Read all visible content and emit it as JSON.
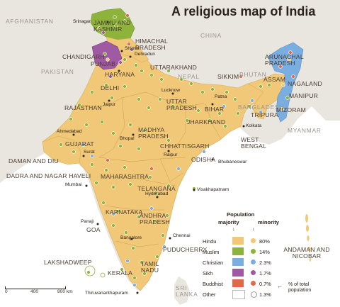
{
  "title": "A religious map of India",
  "colors": {
    "hindu": "#f1c877",
    "muslim": "#8db33a",
    "christian": "#7aaee0",
    "sikh": "#a05aa4",
    "buddhist": "#e0694a",
    "other": "#ffffff",
    "sea": "#ffffff",
    "land_outside": "#e9e5df"
  },
  "countries": [
    "AFGHANISTAN",
    "PAKISTAN",
    "CHINA",
    "NEPAL",
    "BHUTAN",
    "BANGLADESH",
    "MYANMAR",
    "SRI LANKA"
  ],
  "states": {
    "jammu_kashmir": "JAMMU AND KASHMIR",
    "himachal": "HIMACHAL PRADESH",
    "chandigarh": "CHANDIGARH",
    "punjab": "PUNJAB",
    "uttarakhand": "UTTARAKHAND",
    "haryana": "HARYANA",
    "delhi": "DELHI",
    "rajasthan": "RAJASTHAN",
    "uttar_pradesh": "UTTAR PRADESH",
    "bihar": "BIHAR",
    "sikkim": "SIKKIM",
    "arunachal": "ARUNACHAL PRADESH",
    "assam": "ASSAM",
    "nagaland": "NAGALAND",
    "manipur": "MANIPUR",
    "mizoram": "MIZORAM",
    "tripura": "TRIPURA",
    "jharkhand": "JHARKHAND",
    "west_bengal": "WEST BENGAL",
    "gujarat": "GUJARAT",
    "madhya_pradesh": "MADHYA PRADESH",
    "chhattisgarh": "CHHATTISGARH",
    "odisha": "ODISHA",
    "daman_diu": "DAMAN AND DIU",
    "dadra": "DADRA AND NAGAR HAVELI",
    "maharashtra": "MAHARASHTRA",
    "telangana": "TELANGANA",
    "karnataka": "KARNATAKA",
    "andhra": "ANDHRA PRADESH",
    "goa": "GOA",
    "lakshadweep": "LAKSHADWEEP",
    "kerala": "KERALA",
    "tamil_nadu": "TAMIL NADU",
    "puducherry": "PUDUCHERRY",
    "andaman": "ANDAMAN AND NICOBAR"
  },
  "cities": {
    "srinagar": "Srinagar",
    "shimla": "Shimla",
    "dehradun": "Dehradun",
    "jaipur": "Jaipur",
    "lucknow": "Lucknow",
    "patna": "Patna",
    "kolkata": "Kolkata",
    "ahmedabad": "Ahmedabad",
    "bhopal": "Bhopal",
    "raipur": "Raipur",
    "bhubaneswar": "Bhubaneswar",
    "surat": "Surat",
    "mumbai": "Mumbai",
    "hyderabad": "Hyderabad",
    "visakhapatnam": "Visakhapatnam",
    "panaji": "Panaji",
    "bangalore": "Bangalore",
    "chennai": "Chennai",
    "thiruvananthapuram": "Thiruvananthapuram"
  },
  "legend": {
    "heading_population": "Population",
    "heading_majority": "majority",
    "heading_minority": "minority",
    "note": "% of total population",
    "rows": [
      {
        "name": "Hindu",
        "value": "80%"
      },
      {
        "name": "Muslim",
        "value": "14%"
      },
      {
        "name": "Christian",
        "value": "2.3%"
      },
      {
        "name": "Sikh",
        "value": "1.7%"
      },
      {
        "name": "Buddhist",
        "value": "0.7%"
      },
      {
        "name": "Other",
        "value": "1.3%"
      }
    ]
  },
  "scale": {
    "zero": "0",
    "mid": "400",
    "end": "800 km"
  }
}
